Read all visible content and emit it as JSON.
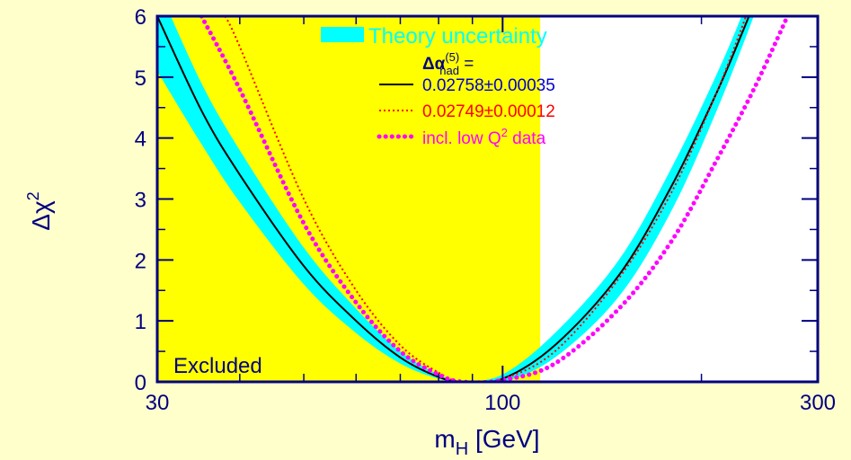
{
  "chart_data": {
    "type": "line",
    "x_scale": "log",
    "xlim": [
      30,
      300
    ],
    "ylim": [
      0,
      6
    ],
    "x_ticks": [
      {
        "value": 30,
        "label": "30"
      },
      {
        "value": 100,
        "label": "100"
      },
      {
        "value": 300,
        "label": "300"
      }
    ],
    "y_ticks": [
      {
        "value": 0,
        "label": "0"
      },
      {
        "value": 1,
        "label": "1"
      },
      {
        "value": 2,
        "label": "2"
      },
      {
        "value": 3,
        "label": "3"
      },
      {
        "value": 4,
        "label": "4"
      },
      {
        "value": 5,
        "label": "5"
      },
      {
        "value": 6,
        "label": "6"
      }
    ],
    "xlabel_main": "m",
    "xlabel_sub": "H",
    "xlabel_rest": " [GeV]",
    "ylabel_main": "Δχ",
    "ylabel_sup": "2",
    "excluded_region": {
      "x": [
        30,
        114
      ],
      "label": "Excluded",
      "color": "#ffff00"
    },
    "band": {
      "name": "Theory uncertainty",
      "color": "#00ffff",
      "minimum_x": 87,
      "upper_edge": [
        [
          30,
          6.5
        ],
        [
          35,
          4.9
        ],
        [
          40,
          3.8
        ],
        [
          50,
          2.2
        ],
        [
          60,
          1.2
        ],
        [
          70,
          0.5
        ],
        [
          80,
          0.12
        ],
        [
          87,
          0.0
        ],
        [
          100,
          0.0
        ],
        [
          120,
          0.4
        ],
        [
          150,
          1.4
        ],
        [
          180,
          2.8
        ],
        [
          210,
          4.4
        ],
        [
          240,
          6.0
        ],
        [
          250,
          6.6
        ]
      ],
      "lower_edge": [
        [
          30,
          5.1
        ],
        [
          35,
          3.9
        ],
        [
          40,
          2.95
        ],
        [
          50,
          1.6
        ],
        [
          60,
          0.8
        ],
        [
          70,
          0.3
        ],
        [
          80,
          0.05
        ],
        [
          87,
          0.0
        ],
        [
          100,
          0.12
        ],
        [
          120,
          0.8
        ],
        [
          150,
          2.0
        ],
        [
          180,
          3.5
        ],
        [
          210,
          5.0
        ],
        [
          230,
          6.0
        ],
        [
          245,
          6.8
        ]
      ]
    },
    "legend_header_main": "Δα",
    "legend_header_sup": "(5)",
    "legend_header_sub": "had",
    "legend_header_tail": " =",
    "series": [
      {
        "name": "0.02758±0.00035",
        "color": "#000000",
        "style": "solid",
        "points": [
          [
            30,
            6.0
          ],
          [
            35,
            4.45
          ],
          [
            40,
            3.4
          ],
          [
            50,
            1.9
          ],
          [
            60,
            1.0
          ],
          [
            70,
            0.4
          ],
          [
            80,
            0.08
          ],
          [
            87,
            0.0
          ],
          [
            100,
            0.05
          ],
          [
            120,
            0.6
          ],
          [
            150,
            1.75
          ],
          [
            180,
            3.2
          ],
          [
            210,
            4.7
          ],
          [
            230,
            5.7
          ],
          [
            240,
            6.2
          ]
        ]
      },
      {
        "name": "0.02749±0.00012",
        "color": "#ff0000",
        "style": "dotted",
        "points": [
          [
            38,
            6.0
          ],
          [
            40,
            5.5
          ],
          [
            50,
            3.0
          ],
          [
            60,
            1.5
          ],
          [
            70,
            0.6
          ],
          [
            80,
            0.15
          ],
          [
            87,
            0.0
          ],
          [
            100,
            0.05
          ],
          [
            120,
            0.5
          ],
          [
            150,
            1.7
          ],
          [
            180,
            3.1
          ],
          [
            210,
            4.7
          ],
          [
            230,
            5.8
          ],
          [
            235,
            6.1
          ]
        ]
      },
      {
        "name": "incl. low Q² data",
        "name_main": "incl. low Q",
        "name_sup": "2",
        "name_tail": " data",
        "color": "#ff00ff",
        "style": "dotted-bold",
        "points": [
          [
            35,
            6.0
          ],
          [
            40,
            4.8
          ],
          [
            50,
            2.6
          ],
          [
            60,
            1.3
          ],
          [
            70,
            0.5
          ],
          [
            80,
            0.12
          ],
          [
            87,
            0.0
          ],
          [
            100,
            0.03
          ],
          [
            120,
            0.3
          ],
          [
            150,
            1.2
          ],
          [
            180,
            2.3
          ],
          [
            210,
            3.6
          ],
          [
            240,
            4.8
          ],
          [
            270,
            6.0
          ]
        ]
      }
    ]
  }
}
